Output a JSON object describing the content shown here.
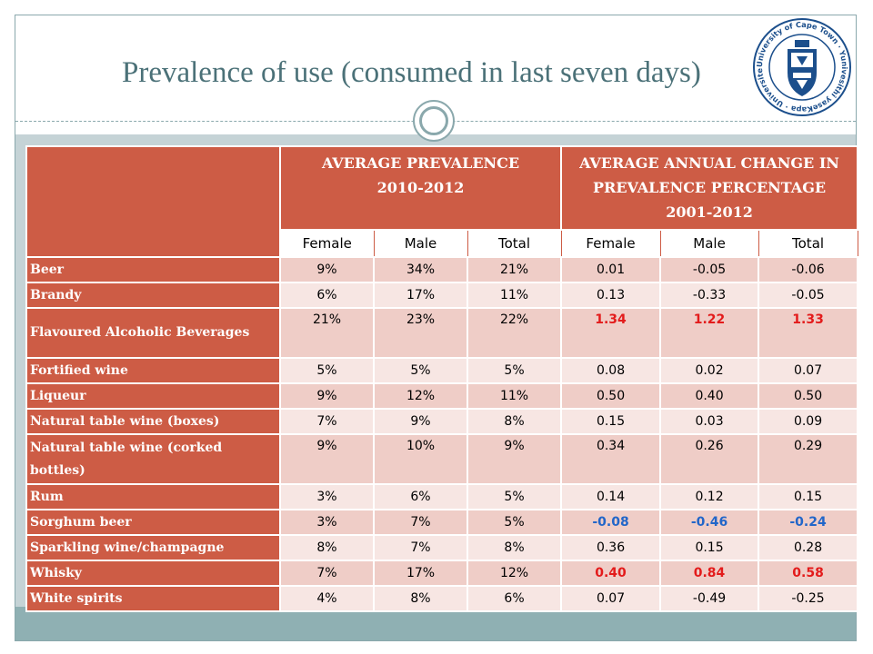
{
  "title": "Prevalence of use (consumed in last seven days)",
  "logo": {
    "text": "University of Cape Town · Yunivesithi yaseKapa · Universiteit van Kaapstad ·",
    "icon": "shield-crest-icon"
  },
  "table": {
    "group_headers": [
      "AVERAGE PREVALENCE 2010-2012",
      "AVERAGE ANNUAL CHANGE IN PREVALENCE PERCENTAGE 2001-2012"
    ],
    "sub_headers": [
      "Female",
      "Male",
      "Total",
      "Female",
      "Male",
      "Total"
    ],
    "rows": [
      {
        "label": "Beer",
        "values": [
          "9%",
          "34%",
          "21%",
          "0.01",
          "-0.05",
          "-0.06"
        ],
        "styles": [
          "",
          "",
          "",
          "",
          "",
          ""
        ]
      },
      {
        "label": "Brandy",
        "values": [
          "6%",
          "17%",
          "11%",
          "0.13",
          "-0.33",
          "-0.05"
        ],
        "styles": [
          "",
          "",
          "",
          "",
          "",
          ""
        ]
      },
      {
        "label": "Flavoured Alcoholic Beverages",
        "values": [
          "21%",
          "23%",
          "22%",
          "1.34",
          "1.22",
          "1.33"
        ],
        "styles": [
          "",
          "",
          "",
          "red",
          "red",
          "red"
        ]
      },
      {
        "label": "Fortified wine",
        "values": [
          "5%",
          "5%",
          "5%",
          "0.08",
          "0.02",
          "0.07"
        ],
        "styles": [
          "",
          "",
          "",
          "",
          "",
          ""
        ]
      },
      {
        "label": "Liqueur",
        "values": [
          "9%",
          "12%",
          "11%",
          "0.50",
          "0.40",
          "0.50"
        ],
        "styles": [
          "",
          "",
          "",
          "",
          "",
          ""
        ]
      },
      {
        "label": "Natural table wine (boxes)",
        "values": [
          "7%",
          "9%",
          "8%",
          "0.15",
          "0.03",
          "0.09"
        ],
        "styles": [
          "",
          "",
          "",
          "",
          "",
          ""
        ]
      },
      {
        "label": "Natural table wine (corked bottles)",
        "values": [
          "9%",
          "10%",
          "9%",
          "0.34",
          "0.26",
          "0.29"
        ],
        "styles": [
          "",
          "",
          "",
          "",
          "",
          ""
        ]
      },
      {
        "label": "Rum",
        "values": [
          "3%",
          "6%",
          "5%",
          "0.14",
          "0.12",
          "0.15"
        ],
        "styles": [
          "",
          "",
          "",
          "",
          "",
          ""
        ]
      },
      {
        "label": "Sorghum beer",
        "values": [
          "3%",
          "7%",
          "5%",
          "-0.08",
          "-0.46",
          "-0.24"
        ],
        "styles": [
          "",
          "",
          "",
          "blue",
          "blue",
          "blue"
        ]
      },
      {
        "label": "Sparkling wine/champagne",
        "values": [
          "8%",
          "7%",
          "8%",
          "0.36",
          "0.15",
          "0.28"
        ],
        "styles": [
          "",
          "",
          "",
          "",
          "",
          ""
        ]
      },
      {
        "label": "Whisky",
        "values": [
          "7%",
          "17%",
          "12%",
          "0.40",
          "0.84",
          "0.58"
        ],
        "styles": [
          "",
          "",
          "",
          "red",
          "red",
          "red"
        ]
      },
      {
        "label": "White spirits",
        "values": [
          "4%",
          "8%",
          "6%",
          "0.07",
          "-0.49",
          "-0.25"
        ],
        "styles": [
          "",
          "",
          "",
          "",
          "",
          ""
        ]
      }
    ]
  },
  "colors": {
    "header": "#cd5c45",
    "title": "#4b7178",
    "red": "#e31b1b",
    "blue": "#2266c9"
  }
}
